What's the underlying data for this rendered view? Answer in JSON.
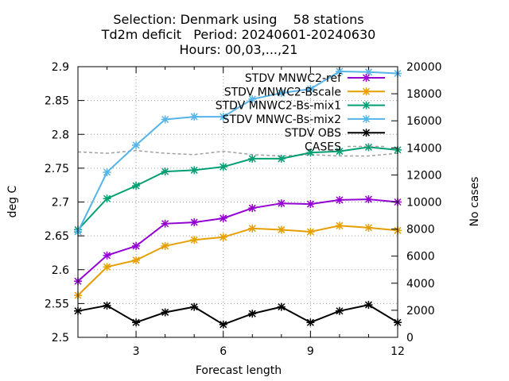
{
  "chart_data": {
    "type": "line",
    "title_lines": [
      "Selection: Denmark using    58 stations",
      "Td2m deficit   Period: 20240601-20240630",
      "Hours: 00,03,...,21"
    ],
    "xlabel": "Forecast length",
    "ylabel": "deg C",
    "y2label": "No cases",
    "xlim": [
      1,
      12
    ],
    "ylim": [
      2.5,
      2.9
    ],
    "y2lim": [
      0,
      20000
    ],
    "xticks": [
      3,
      6,
      9,
      12
    ],
    "yticks": [
      2.5,
      2.55,
      2.6,
      2.65,
      2.7,
      2.75,
      2.8,
      2.85,
      2.9
    ],
    "yticklabels": [
      "2.5",
      "2.55",
      "2.6",
      "2.65",
      "2.7",
      "2.75",
      "2.8",
      "2.85",
      "2.9"
    ],
    "y2ticks": [
      0,
      2000,
      4000,
      6000,
      8000,
      10000,
      12000,
      14000,
      16000,
      18000,
      20000
    ],
    "grid": true,
    "legend_position": "top-right",
    "x": [
      1,
      2,
      3,
      4,
      5,
      6,
      7,
      8,
      9,
      10,
      11,
      12
    ],
    "series": [
      {
        "name": "STDV MNWC2-ref",
        "color": "#9400d3",
        "marker": "x",
        "axis": "y",
        "values": [
          2.583,
          2.621,
          2.635,
          2.668,
          2.67,
          2.676,
          2.691,
          2.698,
          2.697,
          2.703,
          2.704,
          2.7
        ]
      },
      {
        "name": "STDV MNWC2-Bscale",
        "color": "#e69f00",
        "marker": "x",
        "axis": "y",
        "values": [
          2.562,
          2.604,
          2.614,
          2.635,
          2.644,
          2.648,
          2.661,
          2.659,
          2.656,
          2.665,
          2.662,
          2.658
        ]
      },
      {
        "name": "STDV MNWC2-Bs-mix1",
        "color": "#009e73",
        "marker": "x",
        "axis": "y",
        "values": [
          2.659,
          2.705,
          2.724,
          2.745,
          2.747,
          2.752,
          2.764,
          2.764,
          2.773,
          2.775,
          2.781,
          2.777
        ]
      },
      {
        "name": "STDV MNWC-Bs-mix2",
        "color": "#56b4e9",
        "marker": "x",
        "axis": "y",
        "values": [
          2.656,
          2.744,
          2.784,
          2.822,
          2.826,
          2.826,
          2.852,
          2.861,
          2.867,
          2.893,
          2.892,
          2.89
        ]
      },
      {
        "name": "STDV OBS",
        "color": "#000000",
        "marker": "x",
        "axis": "y",
        "values": [
          2.539,
          2.547,
          2.522,
          2.537,
          2.545,
          2.519,
          2.535,
          2.545,
          2.522,
          2.539,
          2.548,
          2.522
        ]
      },
      {
        "name": "CASES",
        "color": "#a0a0a0",
        "marker": "none",
        "dash": true,
        "axis": "y2",
        "values": [
          13700,
          13600,
          13800,
          13600,
          13500,
          13750,
          13500,
          13400,
          13500,
          13400,
          13400,
          13600
        ]
      }
    ]
  }
}
